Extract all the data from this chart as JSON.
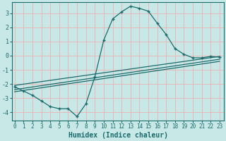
{
  "xlabel": "Humidex (Indice chaleur)",
  "bg_color": "#c8e8e8",
  "grid_color": "#e8b8b8",
  "line_color": "#1a6b6b",
  "x_ticks": [
    0,
    1,
    2,
    3,
    4,
    5,
    6,
    7,
    8,
    9,
    10,
    11,
    12,
    13,
    14,
    15,
    16,
    17,
    18,
    19,
    20,
    21,
    22,
    23
  ],
  "y_ticks": [
    -4,
    -3,
    -2,
    -1,
    0,
    1,
    2,
    3
  ],
  "xlim": [
    -0.3,
    23.5
  ],
  "ylim": [
    -4.6,
    3.8
  ],
  "bell_x": [
    0,
    1,
    2,
    3,
    4,
    5,
    6,
    7,
    8,
    9,
    10,
    11,
    12,
    13,
    14,
    15,
    16,
    17,
    18,
    19,
    20,
    21,
    22,
    23
  ],
  "bell_y": [
    -2.2,
    -2.5,
    -2.8,
    -3.2,
    -3.6,
    -3.75,
    -3.75,
    -4.3,
    -3.4,
    -1.5,
    1.1,
    2.6,
    3.1,
    3.5,
    3.35,
    3.15,
    2.3,
    1.5,
    0.5,
    0.1,
    -0.15,
    -0.15,
    -0.05,
    -0.1
  ],
  "line2_x": [
    0,
    23
  ],
  "line2_y": [
    -2.1,
    -0.05
  ],
  "line3_x": [
    0,
    23
  ],
  "line3_y": [
    -2.4,
    -0.25
  ],
  "line4_x": [
    0,
    23
  ],
  "line4_y": [
    -2.55,
    -0.4
  ]
}
